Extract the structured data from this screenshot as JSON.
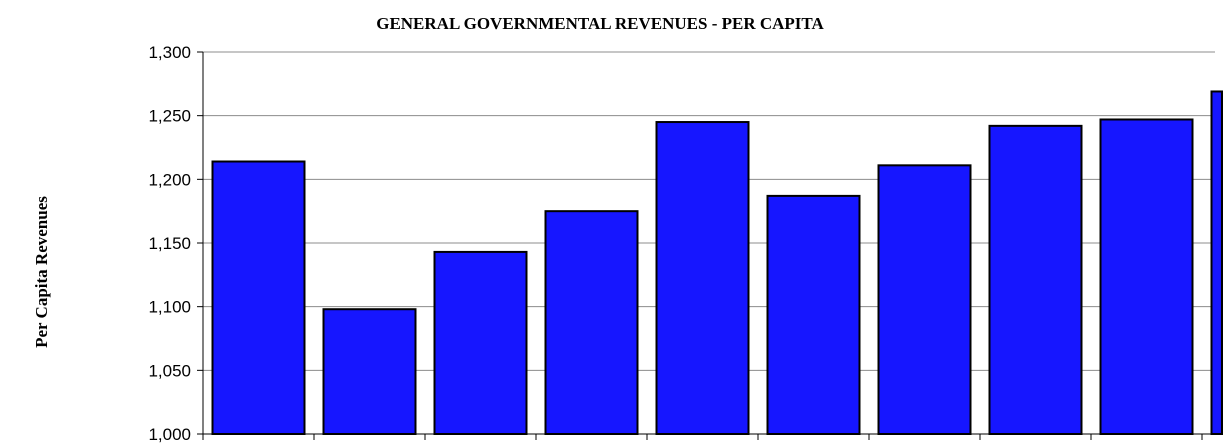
{
  "chart_data": {
    "type": "bar",
    "title": "GENERAL GOVERNMENTAL REVENUES - PER CAPITA",
    "xlabel": "",
    "ylabel": "Per Capita Revenues",
    "ylim": [
      1000,
      1300
    ],
    "yticks": [
      1000,
      1050,
      1100,
      1150,
      1200,
      1250,
      1300
    ],
    "ytick_labels": [
      "1,000",
      "1,050",
      "1,100",
      "1,150",
      "1,200",
      "1,250",
      "1,300"
    ],
    "categories": [
      "",
      "",
      "",
      "",
      "",
      "",
      "",
      "",
      "",
      ""
    ],
    "values": [
      1214,
      1098,
      1143,
      1175,
      1245,
      1187,
      1211,
      1242,
      1247,
      1269
    ],
    "grid": true,
    "legend": "none",
    "bar_color": "#1616ff",
    "bar_stroke": "#000000"
  }
}
